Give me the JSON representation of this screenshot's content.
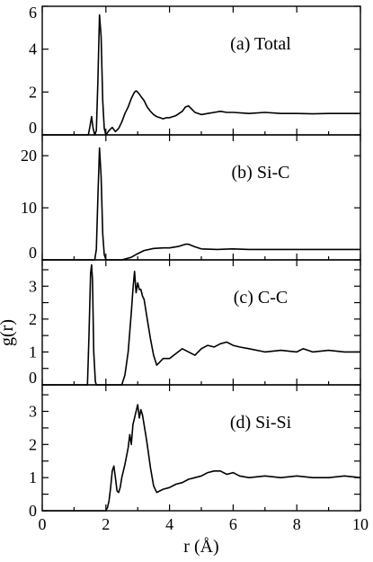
{
  "chart_data": {
    "type": "line",
    "xlabel": "r (Å)",
    "ylabel": "g(r)",
    "xlim": [
      0,
      10
    ],
    "xticks": [
      0,
      2,
      4,
      6,
      8,
      10
    ],
    "panels": [
      {
        "id": "total",
        "label": "(a) Total",
        "ylim": [
          0,
          6
        ],
        "yticks": [
          0,
          2,
          4,
          6
        ],
        "series": [
          {
            "x": [
              0,
              1.45,
              1.5,
              1.55,
              1.6,
              1.65,
              1.7,
              1.75,
              1.8,
              1.85,
              1.9,
              1.95,
              2.0,
              2.1,
              2.2,
              2.3,
              2.4,
              2.5,
              2.6,
              2.7,
              2.8,
              2.9,
              2.95,
              3.0,
              3.05,
              3.1,
              3.2,
              3.3,
              3.4,
              3.5,
              3.6,
              3.7,
              3.8,
              3.9,
              4.0,
              4.2,
              4.4,
              4.5,
              4.6,
              4.7,
              4.8,
              5.0,
              5.2,
              5.4,
              5.6,
              5.8,
              6.0,
              6.5,
              7.0,
              7.5,
              8.0,
              8.5,
              9.0,
              9.5,
              10.0
            ],
            "y": [
              0,
              0,
              0.4,
              0.85,
              0.3,
              0,
              0.2,
              2.5,
              5.6,
              4.6,
              1.6,
              0.3,
              0,
              0.2,
              0.35,
              0.15,
              0.3,
              0.6,
              1.0,
              1.3,
              1.7,
              2.0,
              2.05,
              2.0,
              1.9,
              1.8,
              1.6,
              1.3,
              1.1,
              0.95,
              0.85,
              0.8,
              0.75,
              0.8,
              0.8,
              0.9,
              1.1,
              1.3,
              1.35,
              1.2,
              1.05,
              0.95,
              1.0,
              1.05,
              1.1,
              1.05,
              1.05,
              1.0,
              1.05,
              1.0,
              1.0,
              0.98,
              1.0,
              1.0,
              1.0
            ]
          }
        ]
      },
      {
        "id": "sic",
        "label": "(b) Si-C",
        "ylim": [
          0,
          24
        ],
        "yticks": [
          0,
          10,
          20
        ],
        "series": [
          {
            "x": [
              0,
              1.65,
              1.7,
              1.75,
              1.8,
              1.85,
              1.9,
              1.95,
              2.0,
              2.05,
              2.5,
              2.8,
              3.0,
              3.2,
              3.5,
              3.8,
              4.0,
              4.3,
              4.5,
              4.6,
              4.8,
              5.0,
              5.5,
              6.0,
              6.5,
              7.0,
              8.0,
              9.0,
              10.0
            ],
            "y": [
              0,
              0,
              2.0,
              12.0,
              21.5,
              16.0,
              5.0,
              1.0,
              0.1,
              0,
              0,
              0.5,
              1.2,
              1.8,
              2.2,
              2.3,
              2.3,
              2.6,
              3.0,
              3.0,
              2.5,
              2.1,
              2.0,
              2.1,
              2.0,
              2.0,
              2.0,
              2.0,
              2.0
            ]
          }
        ]
      },
      {
        "id": "cc",
        "label": "(c) C-C",
        "ylim": [
          0,
          3.8
        ],
        "yticks": [
          0,
          0.5,
          1,
          1.5,
          2,
          2.5,
          3,
          3.5
        ],
        "yticklabels": [
          "0",
          "",
          "1",
          "",
          "2",
          "",
          "3",
          ""
        ],
        "series": [
          {
            "x": [
              0,
              1.42,
              1.47,
              1.52,
              1.55,
              1.58,
              1.62,
              1.67,
              1.7,
              2.5,
              2.6,
              2.7,
              2.8,
              2.85,
              2.9,
              2.95,
              3.0,
              3.05,
              3.1,
              3.15,
              3.2,
              3.3,
              3.4,
              3.5,
              3.6,
              3.7,
              3.8,
              4.0,
              4.2,
              4.4,
              4.6,
              4.8,
              5.0,
              5.2,
              5.4,
              5.6,
              5.8,
              6.0,
              6.2,
              6.5,
              7.0,
              7.5,
              8.0,
              8.2,
              8.5,
              9.0,
              9.5,
              10.0
            ],
            "y": [
              0,
              0,
              1.5,
              3.4,
              3.65,
              3.2,
              1.0,
              0.1,
              0,
              0,
              0.3,
              1.0,
              2.2,
              2.9,
              3.45,
              2.8,
              3.1,
              2.9,
              2.9,
              2.7,
              2.6,
              2.0,
              1.4,
              0.9,
              0.6,
              0.7,
              0.8,
              0.8,
              0.95,
              1.1,
              1.0,
              0.9,
              1.1,
              1.2,
              1.15,
              1.25,
              1.3,
              1.2,
              1.15,
              1.1,
              1.0,
              1.05,
              1.0,
              1.1,
              1.0,
              1.05,
              1.0,
              1.0
            ]
          }
        ]
      },
      {
        "id": "sisi",
        "label": "(d) Si-Si",
        "ylim": [
          0,
          3.8
        ],
        "yticks": [
          0,
          0.5,
          1,
          1.5,
          2,
          2.5,
          3,
          3.5
        ],
        "yticklabels": [
          "0",
          "",
          "1",
          "",
          "2",
          "",
          "3",
          ""
        ],
        "series": [
          {
            "x": [
              0,
              2.0,
              2.05,
              2.1,
              2.15,
              2.2,
              2.25,
              2.3,
              2.35,
              2.4,
              2.45,
              2.5,
              2.6,
              2.7,
              2.75,
              2.8,
              2.85,
              2.9,
              2.95,
              3.0,
              3.05,
              3.1,
              3.15,
              3.2,
              3.25,
              3.3,
              3.4,
              3.5,
              3.6,
              3.7,
              3.8,
              4.0,
              4.2,
              4.4,
              4.6,
              4.8,
              5.0,
              5.2,
              5.4,
              5.6,
              5.8,
              6.0,
              6.2,
              6.5,
              7.0,
              7.5,
              8.0,
              8.5,
              9.0,
              9.5,
              10.0
            ],
            "y": [
              0,
              0,
              0.1,
              0.3,
              0.7,
              1.2,
              1.35,
              1.0,
              0.6,
              0.55,
              0.7,
              1.0,
              1.4,
              1.9,
              2.3,
              2.0,
              2.6,
              2.8,
              3.0,
              3.2,
              2.8,
              3.05,
              2.9,
              2.6,
              2.3,
              2.0,
              1.3,
              0.75,
              0.55,
              0.6,
              0.65,
              0.7,
              0.8,
              0.85,
              0.95,
              1.0,
              1.05,
              1.15,
              1.2,
              1.2,
              1.1,
              1.15,
              1.05,
              1.0,
              1.05,
              1.0,
              1.05,
              1.0,
              1.0,
              1.05,
              1.0
            ]
          }
        ]
      }
    ]
  }
}
